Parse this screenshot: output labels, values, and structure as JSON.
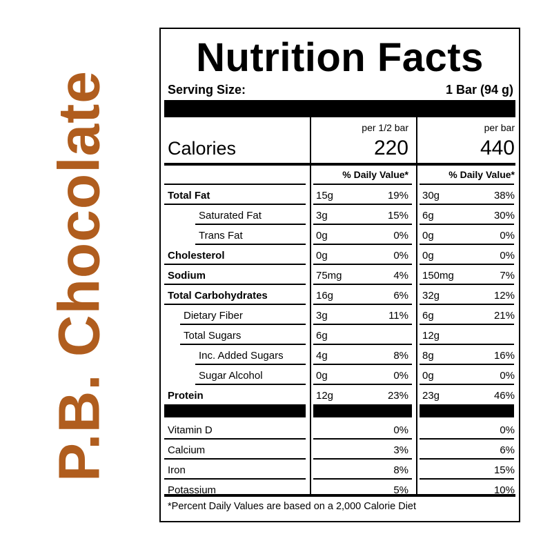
{
  "side_title": "P.B. Chocolate",
  "label": {
    "title": "Nutrition Facts",
    "serving_size_label": "Serving Size:",
    "serving_size_value": "1 Bar (94 g)",
    "calories": {
      "label": "Calories",
      "col1_header": "per 1/2 bar",
      "col2_header": "per bar",
      "col1_value": "220",
      "col2_value": "440"
    },
    "daily_value_header": "% Daily Value*",
    "rows": [
      {
        "name": "Total Fat",
        "bold": true,
        "indent": 0,
        "a1": "15g",
        "p1": "19%",
        "a2": "30g",
        "p2": "38%"
      },
      {
        "name": "Saturated Fat",
        "bold": false,
        "indent": 2,
        "a1": "3g",
        "p1": "15%",
        "a2": "6g",
        "p2": "30%"
      },
      {
        "name": "Trans Fat",
        "bold": false,
        "indent": 2,
        "a1": "0g",
        "p1": "0%",
        "a2": "0g",
        "p2": "0%"
      },
      {
        "name": "Cholesterol",
        "bold": true,
        "indent": 0,
        "a1": "0g",
        "p1": "0%",
        "a2": "0g",
        "p2": "0%"
      },
      {
        "name": "Sodium",
        "bold": true,
        "indent": 0,
        "a1": "75mg",
        "p1": "4%",
        "a2": "150mg",
        "p2": "7%"
      },
      {
        "name": "Total Carbohydrates",
        "bold": true,
        "indent": 0,
        "a1": "16g",
        "p1": "6%",
        "a2": "32g",
        "p2": "12%"
      },
      {
        "name": "Dietary Fiber",
        "bold": false,
        "indent": 1,
        "a1": "3g",
        "p1": "11%",
        "a2": "6g",
        "p2": "21%"
      },
      {
        "name": "Total Sugars",
        "bold": false,
        "indent": 1,
        "a1": "6g",
        "p1": "",
        "a2": "12g",
        "p2": ""
      },
      {
        "name": "Inc. Added Sugars",
        "bold": false,
        "indent": 2,
        "a1": "4g",
        "p1": "8%",
        "a2": "8g",
        "p2": "16%"
      },
      {
        "name": "Sugar Alcohol",
        "bold": false,
        "indent": 2,
        "a1": "0g",
        "p1": "0%",
        "a2": "0g",
        "p2": "0%"
      },
      {
        "name": "Protein",
        "bold": true,
        "indent": 0,
        "a1": "12g",
        "p1": "23%",
        "a2": "23g",
        "p2": "46%"
      }
    ],
    "vitamins": [
      {
        "name": "Vitamin D",
        "p1": "0%",
        "p2": "0%"
      },
      {
        "name": "Calcium",
        "p1": "3%",
        "p2": "6%"
      },
      {
        "name": "Iron",
        "p1": "8%",
        "p2": "15%"
      },
      {
        "name": "Potassium",
        "p1": "5%",
        "p2": "10%"
      }
    ],
    "footnote": "*Percent Daily Values are based on a 2,000 Calorie Diet"
  }
}
